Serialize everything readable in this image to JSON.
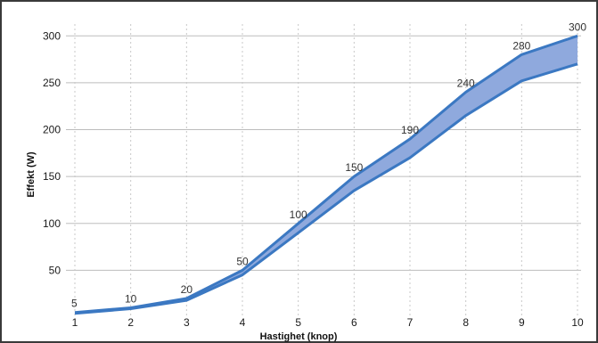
{
  "chart_data": {
    "type": "area",
    "xlabel": "Hastighet (knop)",
    "ylabel": "Effekt (W)",
    "x": [
      1,
      2,
      3,
      4,
      5,
      6,
      7,
      8,
      9,
      10
    ],
    "series": [
      {
        "values": [
          5,
          10,
          20,
          50,
          100,
          150,
          190,
          240,
          280,
          300
        ]
      },
      {
        "values": [
          4,
          9,
          18,
          45,
          90,
          135,
          170,
          215,
          252,
          270
        ]
      }
    ],
    "data_labels": [
      "5",
      "10",
      "20",
      "50",
      "100",
      "150",
      "190",
      "240",
      "280",
      "300"
    ],
    "xlim": [
      1,
      10
    ],
    "ylim": [
      0,
      305
    ],
    "yticks": [
      50,
      100,
      150,
      200,
      250,
      300
    ],
    "grid": {
      "horizontal": true,
      "vertical_dotted": true
    },
    "colors": {
      "line": "#3b78c2",
      "band": "#8fa9dd",
      "grid": "#bdbdbd",
      "vgrid": "#c8c8c8"
    }
  }
}
